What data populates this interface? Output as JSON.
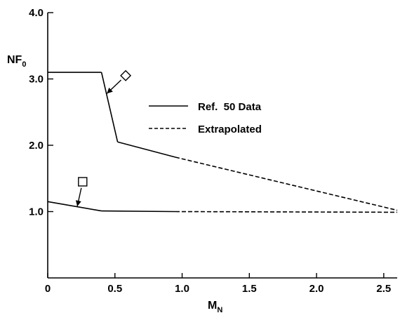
{
  "chart_data": {
    "type": "line",
    "title": "",
    "xlabel": "M",
    "xlabel_sub": "N",
    "ylabel": "NF",
    "ylabel_sub": "0",
    "xlim": [
      0,
      2.6
    ],
    "ylim": [
      0,
      4.0
    ],
    "x_ticks": [
      0,
      0.5,
      1.0,
      1.5,
      2.0,
      2.5
    ],
    "x_tick_labels": [
      "0",
      "0.5",
      "1.0",
      "1.5",
      "2.0",
      "2.5"
    ],
    "y_ticks": [
      1.0,
      2.0,
      3.0,
      4.0
    ],
    "y_tick_labels": [
      "1.0",
      "2.0",
      "3.0",
      "4.0"
    ],
    "grid": false,
    "legend": {
      "placement": "center-right",
      "entries": [
        {
          "label": "Ref.  50 Data",
          "style": "solid"
        },
        {
          "label": "Extrapolated",
          "style": "dashed"
        }
      ]
    },
    "series": [
      {
        "marker": "diamond",
        "points": [
          {
            "x": 0.0,
            "y": 3.1,
            "style": "solid"
          },
          {
            "x": 0.4,
            "y": 3.1,
            "style": "solid"
          },
          {
            "x": 0.52,
            "y": 2.05,
            "style": "solid"
          },
          {
            "x": 0.95,
            "y": 1.82,
            "style": "solid"
          },
          {
            "x": 2.6,
            "y": 1.02,
            "style": "dashed"
          }
        ],
        "solid_until_x": 0.95
      },
      {
        "marker": "square",
        "points": [
          {
            "x": 0.0,
            "y": 1.15,
            "style": "solid"
          },
          {
            "x": 0.4,
            "y": 1.01,
            "style": "solid"
          },
          {
            "x": 0.95,
            "y": 1.0,
            "style": "solid"
          },
          {
            "x": 2.6,
            "y": 0.99,
            "style": "dashed"
          }
        ],
        "solid_until_x": 0.95
      }
    ],
    "annotations": [
      {
        "marker": "diamond",
        "points_to": {
          "x": 0.44,
          "y": 2.78
        },
        "label_at": {
          "x": 0.58,
          "y": 3.05
        }
      },
      {
        "marker": "square",
        "points_to": {
          "x": 0.22,
          "y": 1.08
        },
        "label_at": {
          "x": 0.26,
          "y": 1.45
        }
      }
    ]
  }
}
